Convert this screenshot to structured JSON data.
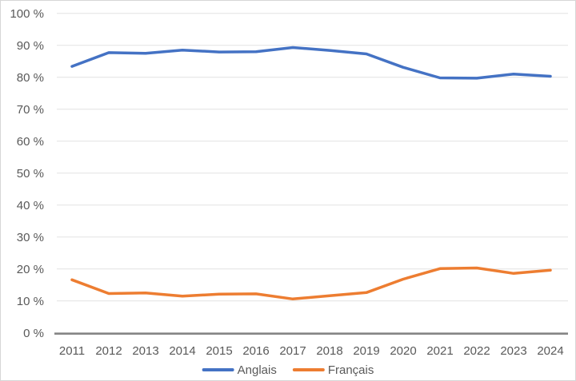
{
  "chart_data": {
    "type": "line",
    "title": "",
    "xlabel": "",
    "ylabel": "",
    "categories": [
      "2011",
      "2012",
      "2013",
      "2014",
      "2015",
      "2016",
      "2017",
      "2018",
      "2019",
      "2020",
      "2021",
      "2022",
      "2023",
      "2024"
    ],
    "series": [
      {
        "name": "Anglais",
        "color": "#4472C4",
        "values": [
          83.4,
          87.7,
          87.5,
          88.5,
          87.9,
          88.0,
          89.3,
          88.4,
          87.3,
          83.1,
          79.8,
          79.7,
          81.0,
          80.3
        ]
      },
      {
        "name": "Français",
        "color": "#ED7D31",
        "values": [
          16.6,
          12.3,
          12.5,
          11.5,
          12.1,
          12.2,
          10.6,
          11.6,
          12.6,
          16.8,
          20.1,
          20.3,
          18.6,
          19.6
        ]
      }
    ],
    "ylim": [
      0,
      100
    ],
    "ytick_step": 10,
    "ytick_labels": [
      "0 %",
      "10 %",
      "20 %",
      "30 %",
      "40 %",
      "50 %",
      "60 %",
      "70 %",
      "80 %",
      "90 %",
      "100 %"
    ],
    "grid": true,
    "legend_position": "bottom"
  },
  "style": {
    "text_color": "#595959",
    "gridline_color": "#e2e2e2",
    "axis_color": "#858585",
    "background": "#ffffff"
  }
}
